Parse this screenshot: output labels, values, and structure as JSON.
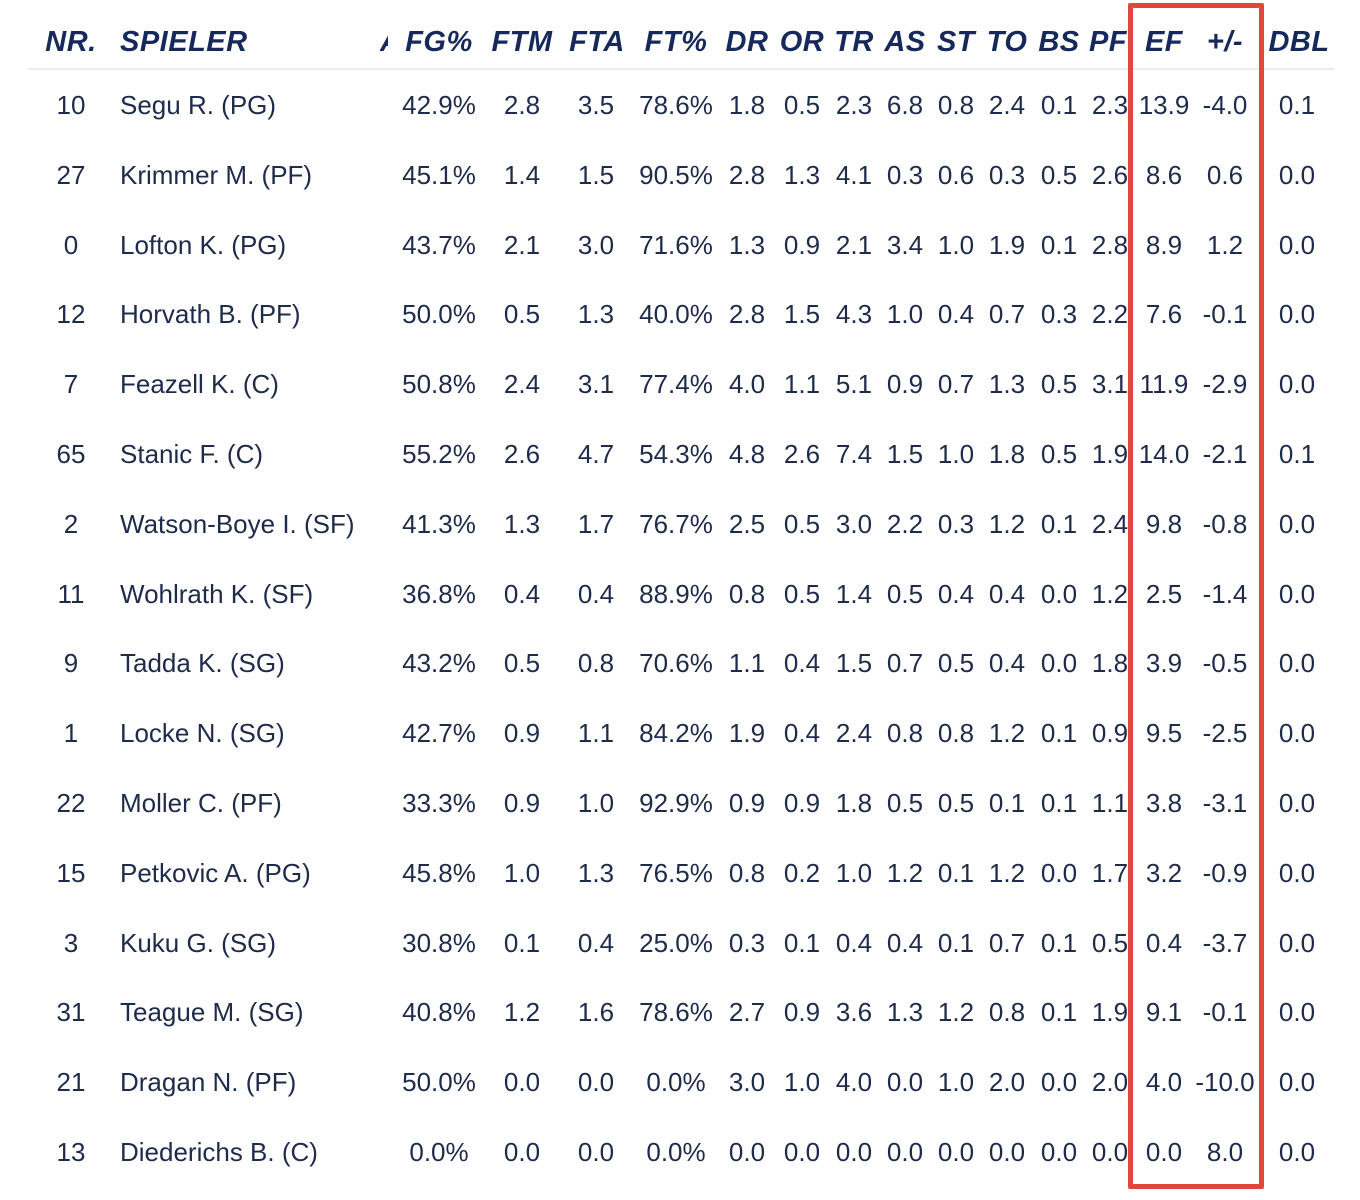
{
  "columns": [
    {
      "key": "nr",
      "label": "NR."
    },
    {
      "key": "spieler",
      "label": "SPIELER"
    },
    {
      "key": "cut",
      "label": "A"
    },
    {
      "key": "fgp",
      "label": "FG%"
    },
    {
      "key": "ftm",
      "label": "FTM"
    },
    {
      "key": "fta",
      "label": "FTA"
    },
    {
      "key": "ftp",
      "label": "FT%"
    },
    {
      "key": "dr",
      "label": "DR"
    },
    {
      "key": "or",
      "label": "OR"
    },
    {
      "key": "tr",
      "label": "TR"
    },
    {
      "key": "as",
      "label": "AS"
    },
    {
      "key": "st",
      "label": "ST"
    },
    {
      "key": "to",
      "label": "TO"
    },
    {
      "key": "bs",
      "label": "BS"
    },
    {
      "key": "pf",
      "label": "PF"
    },
    {
      "key": "ef",
      "label": "EF"
    },
    {
      "key": "pm",
      "label": "+/-"
    },
    {
      "key": "dbl",
      "label": "DBL"
    }
  ],
  "rows": [
    {
      "nr": "10",
      "spieler": "Segu R. (PG)",
      "fgp": "42.9%",
      "ftm": "2.8",
      "fta": "3.5",
      "ftp": "78.6%",
      "dr": "1.8",
      "or": "0.5",
      "tr": "2.3",
      "as": "6.8",
      "st": "0.8",
      "to": "2.4",
      "bs": "0.1",
      "pf": "2.3",
      "ef": "13.9",
      "pm": "-4.0",
      "dbl": "0.1"
    },
    {
      "nr": "27",
      "spieler": "Krimmer M. (PF)",
      "fgp": "45.1%",
      "ftm": "1.4",
      "fta": "1.5",
      "ftp": "90.5%",
      "dr": "2.8",
      "or": "1.3",
      "tr": "4.1",
      "as": "0.3",
      "st": "0.6",
      "to": "0.3",
      "bs": "0.5",
      "pf": "2.6",
      "ef": "8.6",
      "pm": "0.6",
      "dbl": "0.0"
    },
    {
      "nr": "0",
      "spieler": "Lofton K. (PG)",
      "fgp": "43.7%",
      "ftm": "2.1",
      "fta": "3.0",
      "ftp": "71.6%",
      "dr": "1.3",
      "or": "0.9",
      "tr": "2.1",
      "as": "3.4",
      "st": "1.0",
      "to": "1.9",
      "bs": "0.1",
      "pf": "2.8",
      "ef": "8.9",
      "pm": "1.2",
      "dbl": "0.0"
    },
    {
      "nr": "12",
      "spieler": "Horvath B. (PF)",
      "fgp": "50.0%",
      "ftm": "0.5",
      "fta": "1.3",
      "ftp": "40.0%",
      "dr": "2.8",
      "or": "1.5",
      "tr": "4.3",
      "as": "1.0",
      "st": "0.4",
      "to": "0.7",
      "bs": "0.3",
      "pf": "2.2",
      "ef": "7.6",
      "pm": "-0.1",
      "dbl": "0.0"
    },
    {
      "nr": "7",
      "spieler": "Feazell K. (C)",
      "fgp": "50.8%",
      "ftm": "2.4",
      "fta": "3.1",
      "ftp": "77.4%",
      "dr": "4.0",
      "or": "1.1",
      "tr": "5.1",
      "as": "0.9",
      "st": "0.7",
      "to": "1.3",
      "bs": "0.5",
      "pf": "3.1",
      "ef": "11.9",
      "pm": "-2.9",
      "dbl": "0.0"
    },
    {
      "nr": "65",
      "spieler": "Stanic F. (C)",
      "fgp": "55.2%",
      "ftm": "2.6",
      "fta": "4.7",
      "ftp": "54.3%",
      "dr": "4.8",
      "or": "2.6",
      "tr": "7.4",
      "as": "1.5",
      "st": "1.0",
      "to": "1.8",
      "bs": "0.5",
      "pf": "1.9",
      "ef": "14.0",
      "pm": "-2.1",
      "dbl": "0.1"
    },
    {
      "nr": "2",
      "spieler": "Watson-Boye I. (SF)",
      "fgp": "41.3%",
      "ftm": "1.3",
      "fta": "1.7",
      "ftp": "76.7%",
      "dr": "2.5",
      "or": "0.5",
      "tr": "3.0",
      "as": "2.2",
      "st": "0.3",
      "to": "1.2",
      "bs": "0.1",
      "pf": "2.4",
      "ef": "9.8",
      "pm": "-0.8",
      "dbl": "0.0"
    },
    {
      "nr": "11",
      "spieler": "Wohlrath K. (SF)",
      "fgp": "36.8%",
      "ftm": "0.4",
      "fta": "0.4",
      "ftp": "88.9%",
      "dr": "0.8",
      "or": "0.5",
      "tr": "1.4",
      "as": "0.5",
      "st": "0.4",
      "to": "0.4",
      "bs": "0.0",
      "pf": "1.2",
      "ef": "2.5",
      "pm": "-1.4",
      "dbl": "0.0"
    },
    {
      "nr": "9",
      "spieler": "Tadda K. (SG)",
      "fgp": "43.2%",
      "ftm": "0.5",
      "fta": "0.8",
      "ftp": "70.6%",
      "dr": "1.1",
      "or": "0.4",
      "tr": "1.5",
      "as": "0.7",
      "st": "0.5",
      "to": "0.4",
      "bs": "0.0",
      "pf": "1.8",
      "ef": "3.9",
      "pm": "-0.5",
      "dbl": "0.0"
    },
    {
      "nr": "1",
      "spieler": "Locke N. (SG)",
      "fgp": "42.7%",
      "ftm": "0.9",
      "fta": "1.1",
      "ftp": "84.2%",
      "dr": "1.9",
      "or": "0.4",
      "tr": "2.4",
      "as": "0.8",
      "st": "0.8",
      "to": "1.2",
      "bs": "0.1",
      "pf": "0.9",
      "ef": "9.5",
      "pm": "-2.5",
      "dbl": "0.0"
    },
    {
      "nr": "22",
      "spieler": "Moller C. (PF)",
      "fgp": "33.3%",
      "ftm": "0.9",
      "fta": "1.0",
      "ftp": "92.9%",
      "dr": "0.9",
      "or": "0.9",
      "tr": "1.8",
      "as": "0.5",
      "st": "0.5",
      "to": "0.1",
      "bs": "0.1",
      "pf": "1.1",
      "ef": "3.8",
      "pm": "-3.1",
      "dbl": "0.0"
    },
    {
      "nr": "15",
      "spieler": "Petkovic A. (PG)",
      "fgp": "45.8%",
      "ftm": "1.0",
      "fta": "1.3",
      "ftp": "76.5%",
      "dr": "0.8",
      "or": "0.2",
      "tr": "1.0",
      "as": "1.2",
      "st": "0.1",
      "to": "1.2",
      "bs": "0.0",
      "pf": "1.7",
      "ef": "3.2",
      "pm": "-0.9",
      "dbl": "0.0"
    },
    {
      "nr": "3",
      "spieler": "Kuku G. (SG)",
      "fgp": "30.8%",
      "ftm": "0.1",
      "fta": "0.4",
      "ftp": "25.0%",
      "dr": "0.3",
      "or": "0.1",
      "tr": "0.4",
      "as": "0.4",
      "st": "0.1",
      "to": "0.7",
      "bs": "0.1",
      "pf": "0.5",
      "ef": "0.4",
      "pm": "-3.7",
      "dbl": "0.0"
    },
    {
      "nr": "31",
      "spieler": "Teague M. (SG)",
      "fgp": "40.8%",
      "ftm": "1.2",
      "fta": "1.6",
      "ftp": "78.6%",
      "dr": "2.7",
      "or": "0.9",
      "tr": "3.6",
      "as": "1.3",
      "st": "1.2",
      "to": "0.8",
      "bs": "0.1",
      "pf": "1.9",
      "ef": "9.1",
      "pm": "-0.1",
      "dbl": "0.0"
    },
    {
      "nr": "21",
      "spieler": "Dragan N. (PF)",
      "fgp": "50.0%",
      "ftm": "0.0",
      "fta": "0.0",
      "ftp": "0.0%",
      "dr": "3.0",
      "or": "1.0",
      "tr": "4.0",
      "as": "0.0",
      "st": "1.0",
      "to": "2.0",
      "bs": "0.0",
      "pf": "2.0",
      "ef": "4.0",
      "pm": "-10.0",
      "dbl": "0.0"
    },
    {
      "nr": "13",
      "spieler": "Diederichs B. (C)",
      "fgp": "0.0%",
      "ftm": "0.0",
      "fta": "0.0",
      "ftp": "0.0%",
      "dr": "0.0",
      "or": "0.0",
      "tr": "0.0",
      "as": "0.0",
      "st": "0.0",
      "to": "0.0",
      "bs": "0.0",
      "pf": "0.0",
      "ef": "0.0",
      "pm": "8.0",
      "dbl": "0.0"
    }
  ],
  "highlight": {
    "column": "EF, +/-",
    "color": "#e0473d"
  }
}
